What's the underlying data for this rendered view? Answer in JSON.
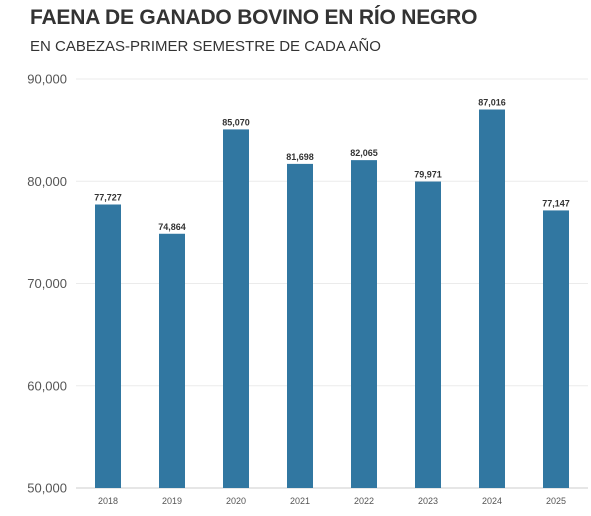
{
  "chart_data": {
    "type": "bar",
    "title": "FAENA DE GANADO BOVINO EN RÍO NEGRO",
    "subtitle": "EN CABEZAS-PRIMER SEMESTRE DE CADA AÑO",
    "xlabel": "",
    "ylabel": "",
    "categories": [
      "2018",
      "2019",
      "2020",
      "2021",
      "2022",
      "2023",
      "2024",
      "2025"
    ],
    "values": [
      77727,
      74864,
      85070,
      81698,
      82065,
      79971,
      87016,
      77147
    ],
    "data_labels": [
      "77,727",
      "74,864",
      "85,070",
      "81,698",
      "82,065",
      "79,971",
      "87,016",
      "77,147"
    ],
    "ylim": [
      50000,
      90000
    ],
    "yticks": [
      50000,
      60000,
      70000,
      80000,
      90000
    ],
    "ytick_labels": [
      "50,000",
      "60,000",
      "70,000",
      "80,000",
      "90,000"
    ],
    "grid": true,
    "bar_color": "#3177a1"
  }
}
